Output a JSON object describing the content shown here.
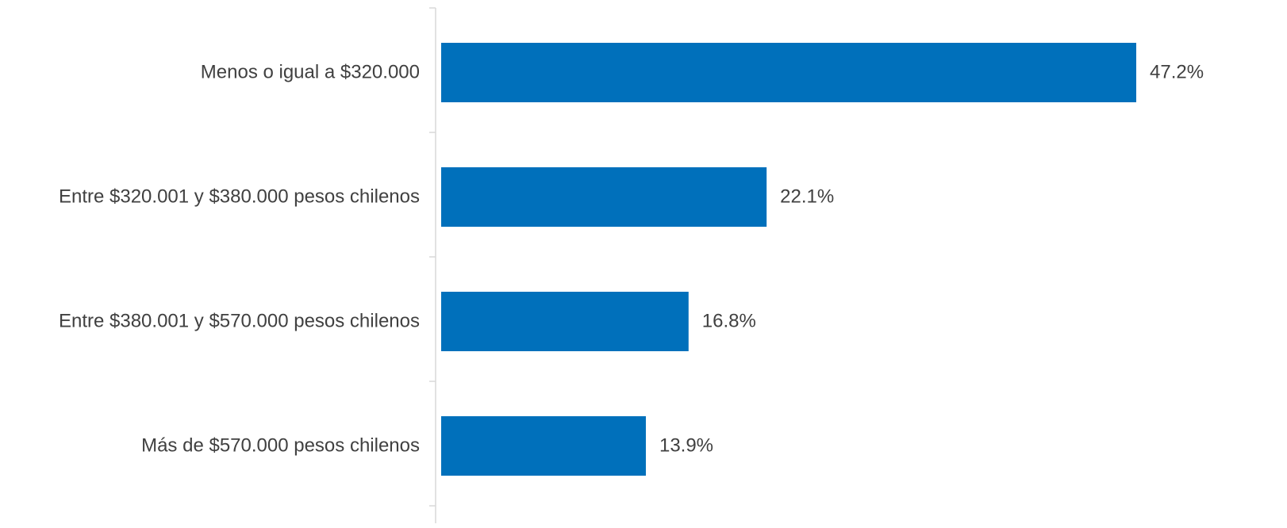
{
  "chart_data": {
    "type": "bar",
    "orientation": "horizontal",
    "title": "",
    "xlabel": "",
    "ylabel": "",
    "categories": [
      "Menos o igual a $320.000",
      "Entre $320.001 y $380.000 pesos chilenos",
      "Entre $380.001 y $570.000 pesos chilenos",
      "Más de $570.000 pesos chilenos"
    ],
    "values": [
      47.2,
      22.1,
      16.8,
      13.9
    ],
    "value_labels": [
      "47.2%",
      "22.1%",
      "16.8%",
      "13.9%"
    ],
    "unit": "%",
    "xlim": [
      0,
      47.2
    ],
    "grid": false,
    "legend": "none",
    "colors": {
      "bar": "#0070BB",
      "label_text": "#404040",
      "axis": "#D9D9D9"
    }
  }
}
